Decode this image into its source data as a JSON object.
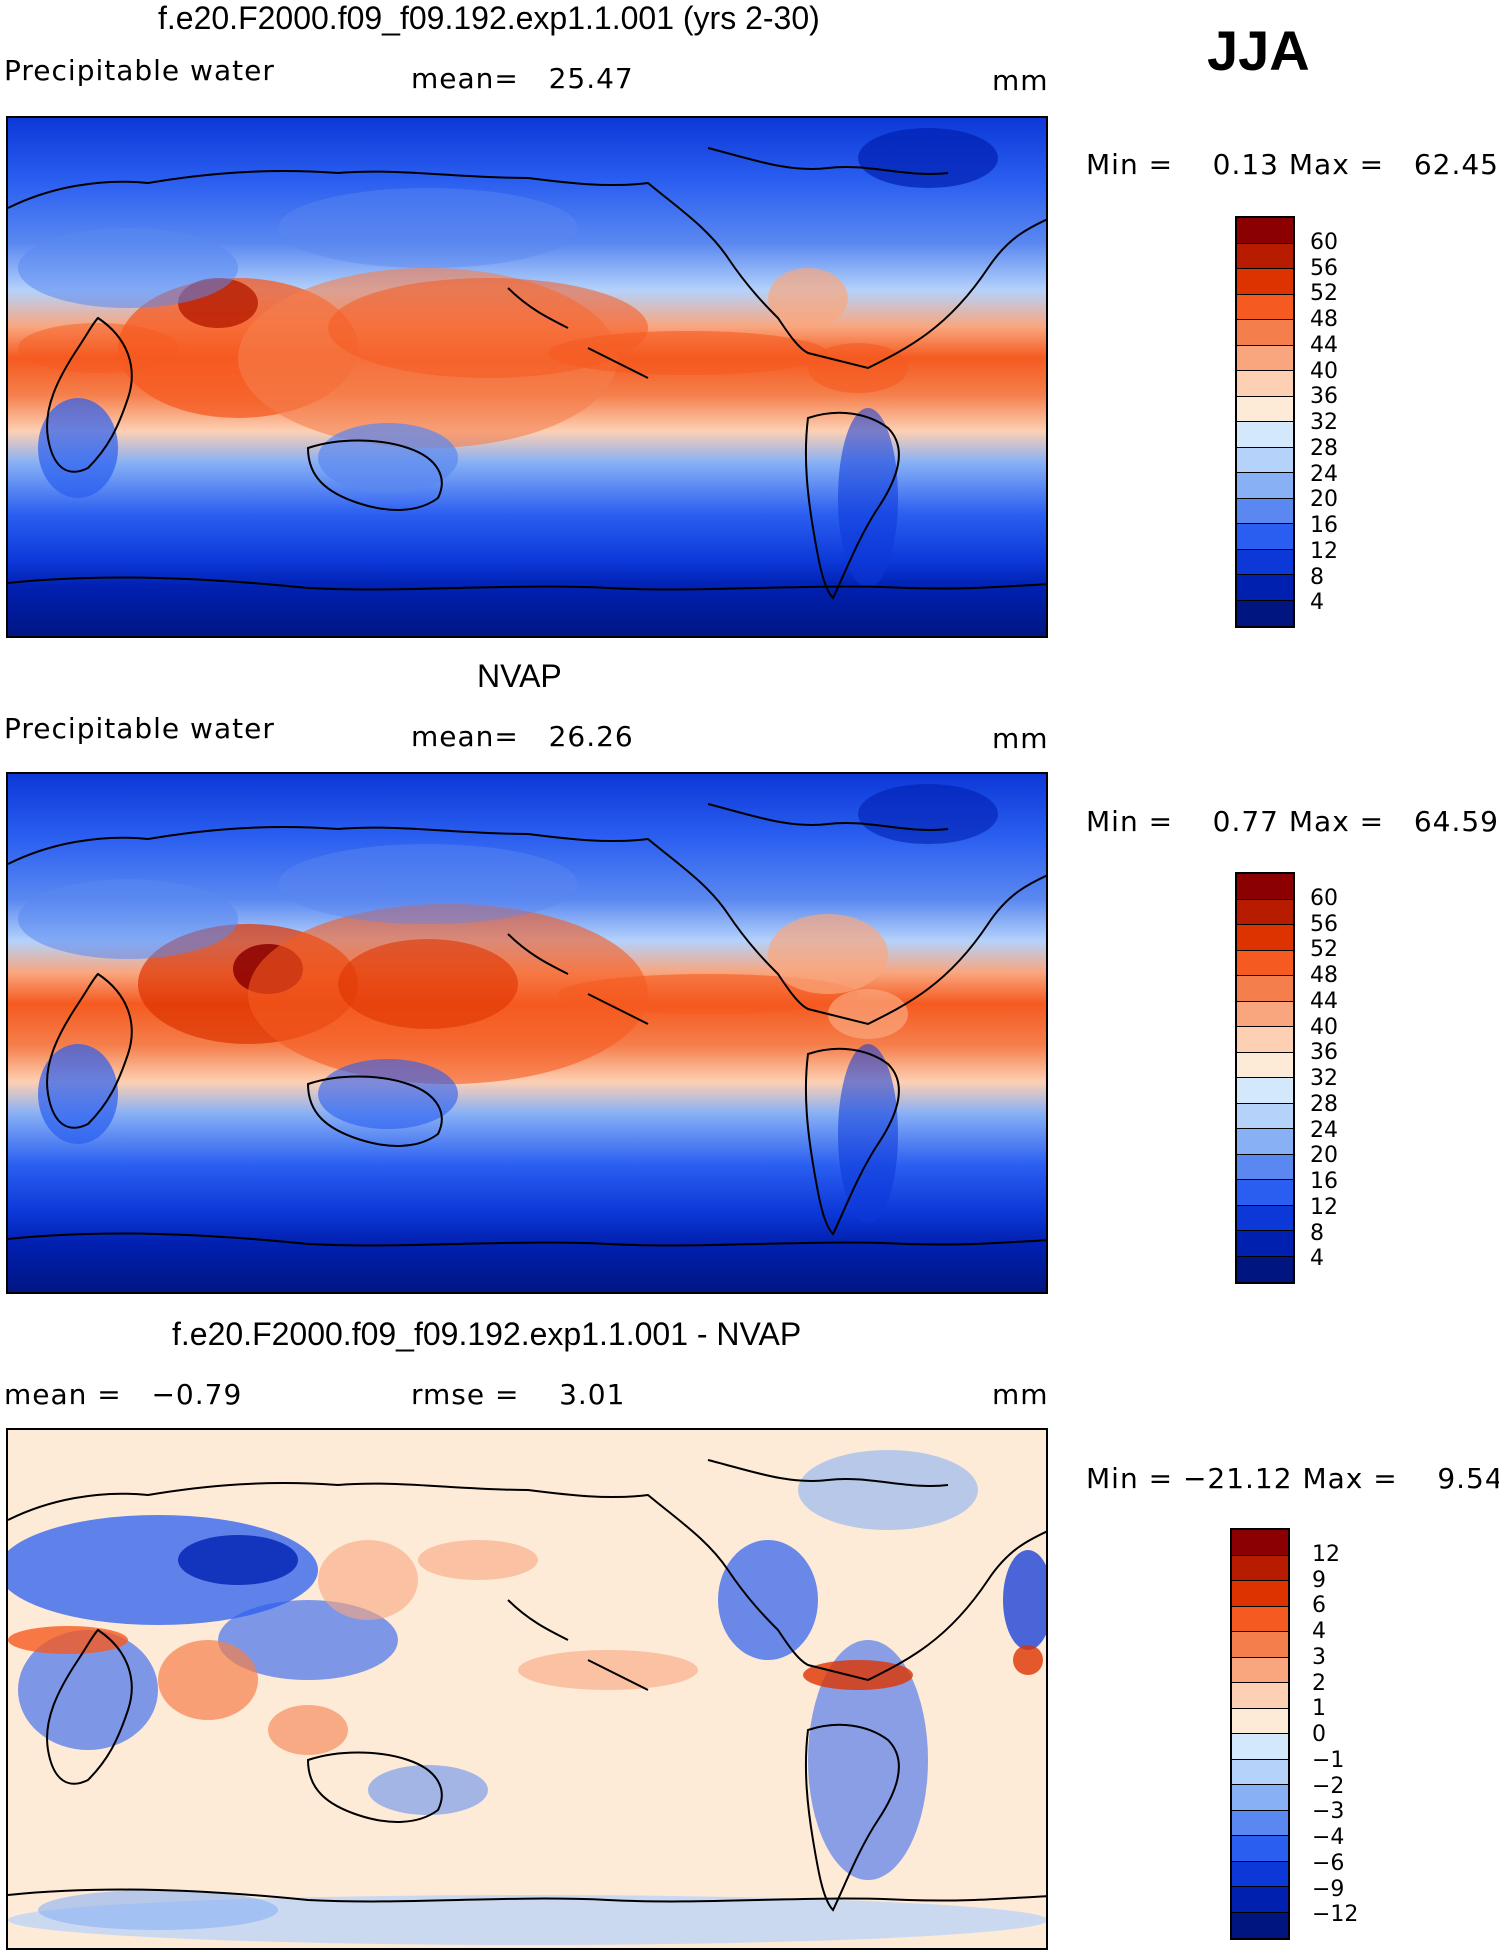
{
  "season": "JJA",
  "panels": [
    {
      "title": "f.e20.F2000.f09_f09.192.exp1.1.001 (yrs 2-30)",
      "left_label": "Precipitable water",
      "center_label": "mean=   25.47",
      "right_label": "mm",
      "minmax": "Min =    0.13 Max =   62.45",
      "colorbar": {
        "ticks": [
          "60",
          "56",
          "52",
          "48",
          "44",
          "40",
          "36",
          "32",
          "28",
          "24",
          "20",
          "16",
          "12",
          "8",
          "4"
        ],
        "colors": [
          "#8b0000",
          "#b71c00",
          "#dd3300",
          "#f55a20",
          "#f57f4c",
          "#f9a67e",
          "#fdd0b4",
          "#fdebd8",
          "#d4e8fb",
          "#b5d2fb",
          "#88b0f5",
          "#5a88f0",
          "#2a5ef0",
          "#0c38d8",
          "#0020b0",
          "#001580"
        ]
      }
    },
    {
      "title": "NVAP",
      "left_label": "Precipitable water",
      "center_label": "mean=   26.26",
      "right_label": "mm",
      "minmax": "Min =    0.77 Max =   64.59",
      "colorbar": {
        "ticks": [
          "60",
          "56",
          "52",
          "48",
          "44",
          "40",
          "36",
          "32",
          "28",
          "24",
          "20",
          "16",
          "12",
          "8",
          "4"
        ],
        "colors": [
          "#8b0000",
          "#b71c00",
          "#dd3300",
          "#f55a20",
          "#f57f4c",
          "#f9a67e",
          "#fdd0b4",
          "#fdebd8",
          "#d4e8fb",
          "#b5d2fb",
          "#88b0f5",
          "#5a88f0",
          "#2a5ef0",
          "#0c38d8",
          "#0020b0",
          "#001580"
        ]
      }
    },
    {
      "title": "f.e20.F2000.f09_f09.192.exp1.1.001 - NVAP",
      "left_label": "mean =   −0.79",
      "center_label": "rmse =    3.01",
      "right_label": "mm",
      "minmax": "Min = −21.12 Max =    9.54",
      "colorbar": {
        "ticks": [
          "12",
          "9",
          "6",
          "4",
          "3",
          "2",
          "1",
          "0",
          "−1",
          "−2",
          "−3",
          "−4",
          "−6",
          "−9",
          "−12"
        ],
        "colors": [
          "#8b0000",
          "#b71c00",
          "#dd3300",
          "#f55a20",
          "#f57f4c",
          "#f9a67e",
          "#fdd0b4",
          "#fdebd8",
          "#d4e8fb",
          "#b5d2fb",
          "#88b0f5",
          "#5a88f0",
          "#2a5ef0",
          "#0c38d8",
          "#0020b0",
          "#001580"
        ]
      }
    }
  ]
}
